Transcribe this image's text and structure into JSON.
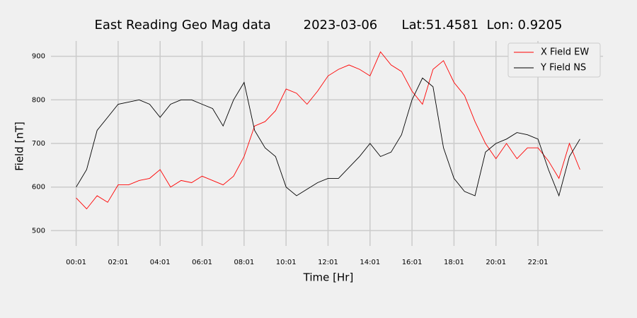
{
  "chart_data": {
    "type": "line",
    "title": "East Reading Geo Mag data        2023-03-06      Lat:51.4581  Lon: 0.9205",
    "x_label": "Time  [Hr]",
    "y_label": "Field  [nT]",
    "x": [
      0,
      0.5,
      1,
      1.5,
      2,
      2.5,
      3,
      3.5,
      4,
      4.5,
      5,
      5.5,
      6,
      6.5,
      7,
      7.5,
      8,
      8.5,
      9,
      9.5,
      10,
      10.5,
      11,
      11.5,
      12,
      12.5,
      13,
      13.5,
      14,
      14.5,
      15,
      15.5,
      16,
      16.5,
      17,
      17.5,
      18,
      18.5,
      19,
      19.5,
      20,
      20.5,
      21,
      21.5,
      22,
      22.5,
      23,
      23.5,
      24
    ],
    "series": [
      {
        "name": "X Field EW",
        "color": "#ff0000",
        "values": [
          575,
          550,
          580,
          565,
          605,
          605,
          615,
          620,
          640,
          600,
          615,
          610,
          625,
          615,
          605,
          625,
          670,
          740,
          750,
          775,
          825,
          815,
          790,
          820,
          855,
          870,
          880,
          870,
          855,
          910,
          880,
          865,
          820,
          790,
          870,
          890,
          840,
          810,
          750,
          700,
          665,
          700,
          665,
          690,
          690,
          660,
          620,
          700,
          640
        ]
      },
      {
        "name": "Y Field NS",
        "color": "#000000",
        "values": [
          600,
          640,
          730,
          760,
          790,
          795,
          800,
          790,
          760,
          790,
          800,
          800,
          790,
          780,
          740,
          800,
          840,
          730,
          690,
          670,
          600,
          580,
          595,
          610,
          620,
          620,
          645,
          670,
          700,
          670,
          680,
          720,
          800,
          850,
          830,
          690,
          620,
          590,
          580,
          680,
          700,
          710,
          725,
          720,
          710,
          640,
          580,
          670,
          710
        ]
      }
    ],
    "xlim": [
      -1.2,
      25.1
    ],
    "ylim": [
      465,
      935
    ],
    "xticks": [
      {
        "value": 0,
        "label": "00:01"
      },
      {
        "value": 2,
        "label": "02:01"
      },
      {
        "value": 4,
        "label": "04:01"
      },
      {
        "value": 6,
        "label": "06:01"
      },
      {
        "value": 8,
        "label": "08:01"
      },
      {
        "value": 10,
        "label": "10:01"
      },
      {
        "value": 12,
        "label": "12:01"
      },
      {
        "value": 14,
        "label": "14:01"
      },
      {
        "value": 16,
        "label": "16:01"
      },
      {
        "value": 18,
        "label": "18:01"
      },
      {
        "value": 20,
        "label": "20:01"
      },
      {
        "value": 22,
        "label": "22:01"
      }
    ],
    "yticks": [
      500,
      600,
      700,
      800,
      900
    ],
    "grid": true,
    "legend": "upper right"
  }
}
